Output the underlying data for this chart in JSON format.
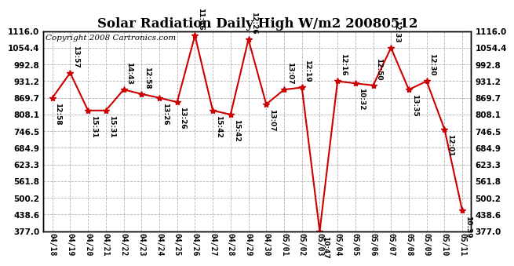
{
  "title": "Solar Radiation Daily High W/m2 20080512",
  "copyright": "Copyright 2008 Cartronics.com",
  "dates": [
    "04/18",
    "04/19",
    "04/20",
    "04/21",
    "04/22",
    "04/23",
    "04/24",
    "04/25",
    "04/26",
    "04/27",
    "04/28",
    "04/29",
    "04/30",
    "05/01",
    "05/02",
    "05/03",
    "05/04",
    "05/05",
    "05/06",
    "05/07",
    "05/08",
    "05/09",
    "05/10",
    "05/11"
  ],
  "values": [
    869.7,
    962.0,
    823.0,
    823.0,
    900.0,
    884.0,
    869.7,
    854.0,
    1100.0,
    823.0,
    808.1,
    1085.0,
    846.0,
    900.0,
    908.0,
    377.0,
    931.2,
    923.0,
    916.0,
    1054.4,
    900.0,
    931.2,
    754.0,
    453.0
  ],
  "labels": [
    "12:58",
    "13:57",
    "15:31",
    "15:31",
    "14:43",
    "12:58",
    "13:26",
    "13:26",
    "11:46",
    "15:42",
    "15:42",
    "12:26",
    "13:07",
    "13:07",
    "12:19",
    "10:47",
    "12:16",
    "10:32",
    "12:50",
    "12:33",
    "13:35",
    "12:30",
    "12:01",
    "10:39"
  ],
  "label_above": [
    false,
    true,
    false,
    false,
    true,
    true,
    false,
    false,
    true,
    false,
    false,
    true,
    false,
    true,
    true,
    false,
    true,
    false,
    true,
    true,
    false,
    true,
    false,
    false
  ],
  "ylim_min": 377.0,
  "ylim_max": 1116.0,
  "ytick_values": [
    377.0,
    438.6,
    500.2,
    561.8,
    623.3,
    684.9,
    746.5,
    808.1,
    869.7,
    931.2,
    992.8,
    1054.4,
    1116.0
  ],
  "line_color": "#cc0000",
  "marker_color": "#cc0000",
  "bg_color": "#ffffff",
  "grid_color": "#aaaaaa",
  "title_fontsize": 12,
  "label_fontsize": 6.5,
  "tick_fontsize": 7.5,
  "xtick_fontsize": 7.0,
  "copyright_fontsize": 7.5
}
